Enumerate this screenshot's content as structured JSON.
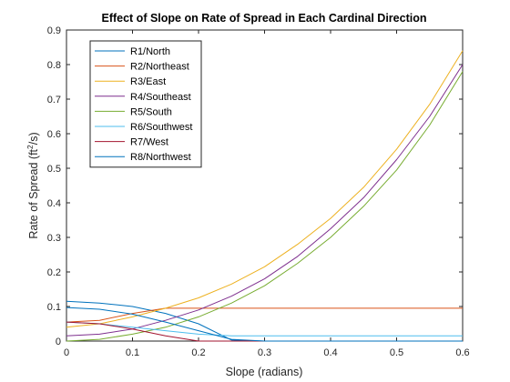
{
  "chart_data": {
    "type": "line",
    "title": "Effect of Slope on Rate of Spread in Each Cardinal Direction",
    "xlabel": "Slope (radians)",
    "ylabel_main": "Rate of Spread (ft",
    "ylabel_sup": "2",
    "ylabel_tail": "/s)",
    "xlim": [
      0,
      0.6
    ],
    "ylim": [
      0,
      0.9
    ],
    "xticks": [
      0,
      0.1,
      0.2,
      0.3,
      0.4,
      0.5,
      0.6
    ],
    "xtick_labels": [
      "0",
      "0.1",
      "0.2",
      "0.3",
      "0.4",
      "0.5",
      "0.6"
    ],
    "yticks": [
      0,
      0.1,
      0.2,
      0.3,
      0.4,
      0.5,
      0.6,
      0.7,
      0.8,
      0.9
    ],
    "ytick_labels": [
      "0",
      "0.1",
      "0.2",
      "0.3",
      "0.4",
      "0.5",
      "0.6",
      "0.7",
      "0.8",
      "0.9"
    ],
    "grid": false,
    "legend_position": "top-left",
    "x": [
      0,
      0.05,
      0.1,
      0.15,
      0.2,
      0.25,
      0.3,
      0.35,
      0.4,
      0.45,
      0.5,
      0.55,
      0.6
    ],
    "series": [
      {
        "name": "R1/North",
        "color": "#0072BD",
        "values": [
          0.115,
          0.11,
          0.1,
          0.08,
          0.05,
          0.003,
          0.0,
          0.0,
          0.0,
          0.0,
          0.0,
          0.0,
          0.0
        ]
      },
      {
        "name": "R2/Northeast",
        "color": "#D95319",
        "values": [
          0.055,
          0.06,
          0.08,
          0.095,
          0.095,
          0.095,
          0.095,
          0.095,
          0.095,
          0.095,
          0.095,
          0.095,
          0.095
        ]
      },
      {
        "name": "R3/East",
        "color": "#EDB120",
        "values": [
          0.04,
          0.05,
          0.07,
          0.095,
          0.125,
          0.165,
          0.215,
          0.28,
          0.355,
          0.445,
          0.555,
          0.685,
          0.84
        ]
      },
      {
        "name": "R4/Southeast",
        "color": "#7E2F8E",
        "values": [
          0.015,
          0.02,
          0.035,
          0.06,
          0.09,
          0.13,
          0.18,
          0.245,
          0.325,
          0.415,
          0.525,
          0.65,
          0.8
        ]
      },
      {
        "name": "R5/South",
        "color": "#77AC30",
        "values": [
          0.0,
          0.005,
          0.02,
          0.04,
          0.07,
          0.11,
          0.16,
          0.225,
          0.3,
          0.39,
          0.495,
          0.625,
          0.78
        ]
      },
      {
        "name": "R6/Southwest",
        "color": "#4DBEEE",
        "values": [
          0.055,
          0.05,
          0.04,
          0.03,
          0.02,
          0.015,
          0.015,
          0.015,
          0.015,
          0.015,
          0.015,
          0.015,
          0.015
        ]
      },
      {
        "name": "R7/West",
        "color": "#A2142F",
        "values": [
          0.055,
          0.05,
          0.035,
          0.015,
          0.0,
          0.0,
          0.0,
          0.0,
          0.0,
          0.0,
          0.0,
          0.0,
          0.0
        ]
      },
      {
        "name": "R8/Northwest",
        "color": "#0072BD",
        "values": [
          0.097,
          0.092,
          0.078,
          0.055,
          0.03,
          0.005,
          0.0,
          0.0,
          0.0,
          0.0,
          0.0,
          0.0,
          0.0
        ]
      }
    ]
  }
}
